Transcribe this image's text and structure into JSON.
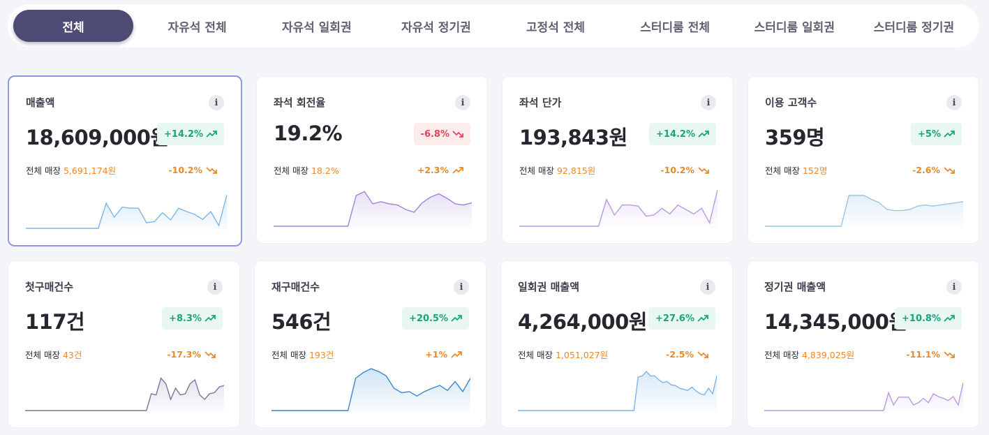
{
  "tabs": [
    "전체",
    "자유석 전체",
    "자유석 일회권",
    "자유석 정기권",
    "고정석 전체",
    "스터디룸 전체",
    "스터디룸 일회권",
    "스터디룸 정기권"
  ],
  "info_icon_label": "i",
  "sub_label": "전체 매장",
  "colors": {
    "up": "#1aa37a",
    "down": "#e0465a",
    "orange": "#e8892a"
  },
  "cards": [
    {
      "title": "매출액",
      "value": "18,609,000원",
      "badge": "+14.2%",
      "badge_dir": "up",
      "sub_value": "5,691,174원",
      "sub_change": "-10.2%",
      "sub_dir": "down",
      "line_color": "#7fb4e6",
      "fill_color": "#d7e9f8",
      "spark": [
        0,
        0,
        0,
        0,
        0,
        0,
        0,
        0,
        0,
        0,
        45,
        20,
        38,
        36,
        36,
        10,
        12,
        28,
        15,
        36,
        30,
        25,
        16,
        30,
        5,
        60
      ]
    },
    {
      "title": "좌석 회전율",
      "value": "19.2%",
      "badge": "-6.8%",
      "badge_dir": "down",
      "sub_value": "18.2%",
      "sub_change": "+2.3%",
      "sub_dir": "up",
      "line_color": "#9b86d6",
      "fill_color": "#e6dff6",
      "spark": [
        0,
        0,
        0,
        0,
        0,
        0,
        0,
        0,
        0,
        0,
        55,
        62,
        40,
        44,
        40,
        38,
        30,
        25,
        42,
        52,
        58,
        50,
        40,
        38,
        42
      ]
    },
    {
      "title": "좌석 단가",
      "value": "193,843원",
      "badge": "+14.2%",
      "badge_dir": "up",
      "sub_value": "92,815원",
      "sub_change": "-10.2%",
      "sub_dir": "down",
      "line_color": "#b89ae3",
      "fill_color": "#efe6fa",
      "spark": [
        0,
        0,
        0,
        0,
        0,
        0,
        0,
        0,
        0,
        0,
        0,
        48,
        20,
        38,
        38,
        36,
        18,
        20,
        32,
        22,
        38,
        30,
        22,
        32,
        6,
        65
      ]
    },
    {
      "title": "이용 고객수",
      "value": "359명",
      "badge": "+5%",
      "badge_dir": "up",
      "sub_value": "152명",
      "sub_change": "-2.6%",
      "sub_dir": "down",
      "line_color": "#9cc4e4",
      "fill_color": "#e0eff8",
      "spark": [
        0,
        0,
        0,
        0,
        0,
        0,
        0,
        0,
        0,
        0,
        0,
        55,
        55,
        55,
        48,
        42,
        30,
        28,
        28,
        30,
        36,
        38,
        36,
        38,
        40,
        42,
        44
      ]
    },
    {
      "title": "첫구매건수",
      "value": "117건",
      "badge": "+8.3%",
      "badge_dir": "up",
      "sub_value": "43건",
      "sub_change": "-17.3%",
      "sub_dir": "down",
      "line_color": "#7d7498",
      "fill_color": "#e3e0ec",
      "spark": [
        0,
        0,
        0,
        0,
        0,
        0,
        0,
        0,
        0,
        0,
        0,
        0,
        0,
        0,
        0,
        0,
        0,
        0,
        0,
        0,
        0,
        0,
        0,
        0,
        0,
        0,
        30,
        28,
        58,
        48,
        20,
        40,
        28,
        30,
        48,
        55,
        28,
        20,
        30,
        32,
        42,
        45
      ]
    },
    {
      "title": "재구매건수",
      "value": "546건",
      "badge": "+20.5%",
      "badge_dir": "up",
      "sub_value": "193건",
      "sub_change": "+1%",
      "sub_dir": "up",
      "line_color": "#3a86c8",
      "fill_color": "#cfe3f4",
      "spark": [
        0,
        0,
        0,
        0,
        0,
        0,
        0,
        0,
        0,
        0,
        0,
        58,
        68,
        75,
        70,
        62,
        40,
        32,
        34,
        26,
        34,
        40,
        45,
        36,
        52,
        34,
        58
      ]
    },
    {
      "title": "일회권 매출액",
      "value": "4,264,000원",
      "badge": "+27.6%",
      "badge_dir": "up",
      "sub_value": "1,051,027원",
      "sub_change": "-2.5%",
      "sub_dir": "down",
      "line_color": "#7fb4e6",
      "fill_color": "#d7e9f8",
      "spark": [
        0,
        0,
        0,
        0,
        0,
        0,
        0,
        0,
        0,
        0,
        0,
        0,
        0,
        0,
        0,
        0,
        0,
        0,
        0,
        0,
        0,
        0,
        0,
        0,
        0,
        0,
        0,
        0,
        0,
        60,
        62,
        70,
        62,
        62,
        55,
        50,
        52,
        46,
        45,
        40,
        38,
        36,
        42,
        35,
        30,
        28,
        40,
        30,
        62
      ]
    },
    {
      "title": "정기권 매출액",
      "value": "14,345,000원",
      "badge": "+10.8%",
      "badge_dir": "up",
      "sub_value": "4,839,025원",
      "sub_change": "-11.1%",
      "sub_dir": "down",
      "line_color": "#b89ae3",
      "fill_color": "#efe6fa",
      "spark": [
        0,
        0,
        0,
        0,
        0,
        0,
        0,
        0,
        0,
        0,
        0,
        0,
        0,
        0,
        0,
        0,
        0,
        0,
        0,
        0,
        0,
        0,
        0,
        0,
        0,
        32,
        10,
        24,
        24,
        24,
        10,
        14,
        22,
        14,
        30,
        25,
        22,
        18,
        25,
        10,
        50
      ]
    }
  ]
}
